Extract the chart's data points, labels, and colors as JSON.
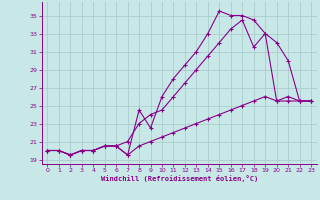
{
  "xlabel": "Windchill (Refroidissement éolien,°C)",
  "bg_color": "#c8e8e8",
  "grid_color": "#aacccc",
  "line_color": "#880088",
  "xlim": [
    -0.5,
    23.5
  ],
  "ylim": [
    18.5,
    36.5
  ],
  "xticks": [
    0,
    1,
    2,
    3,
    4,
    5,
    6,
    7,
    8,
    9,
    10,
    11,
    12,
    13,
    14,
    15,
    16,
    17,
    18,
    19,
    20,
    21,
    22,
    23
  ],
  "yticks": [
    19,
    21,
    23,
    25,
    27,
    29,
    31,
    33,
    35
  ],
  "line1_x": [
    0,
    1,
    2,
    3,
    4,
    5,
    6,
    7,
    8,
    9,
    10,
    11,
    12,
    13,
    14,
    15,
    16,
    17,
    18,
    19,
    20,
    21,
    22,
    23
  ],
  "line1_y": [
    20,
    20,
    19.5,
    20,
    20,
    20.5,
    20.5,
    19.5,
    24.5,
    22.5,
    26,
    28,
    29.5,
    31,
    33,
    35.5,
    35,
    35,
    34.5,
    33,
    25.5,
    26,
    25.5,
    25.5
  ],
  "line2_x": [
    0,
    1,
    2,
    3,
    4,
    5,
    6,
    7,
    8,
    9,
    10,
    11,
    12,
    13,
    14,
    15,
    16,
    17,
    18,
    19,
    20,
    21,
    22,
    23
  ],
  "line2_y": [
    20,
    20,
    19.5,
    20,
    20,
    20.5,
    20.5,
    21,
    23,
    24,
    24.5,
    26,
    27.5,
    29,
    30.5,
    32,
    33.5,
    34.5,
    31.5,
    33,
    32,
    30,
    25.5,
    25.5
  ],
  "line3_x": [
    0,
    1,
    2,
    3,
    4,
    5,
    6,
    7,
    8,
    9,
    10,
    11,
    12,
    13,
    14,
    15,
    16,
    17,
    18,
    19,
    20,
    21,
    22,
    23
  ],
  "line3_y": [
    20,
    20,
    19.5,
    20,
    20,
    20.5,
    20.5,
    19.5,
    20.5,
    21,
    21.5,
    22,
    22.5,
    23,
    23.5,
    24,
    24.5,
    25,
    25.5,
    26,
    25.5,
    25.5,
    25.5,
    25.5
  ]
}
